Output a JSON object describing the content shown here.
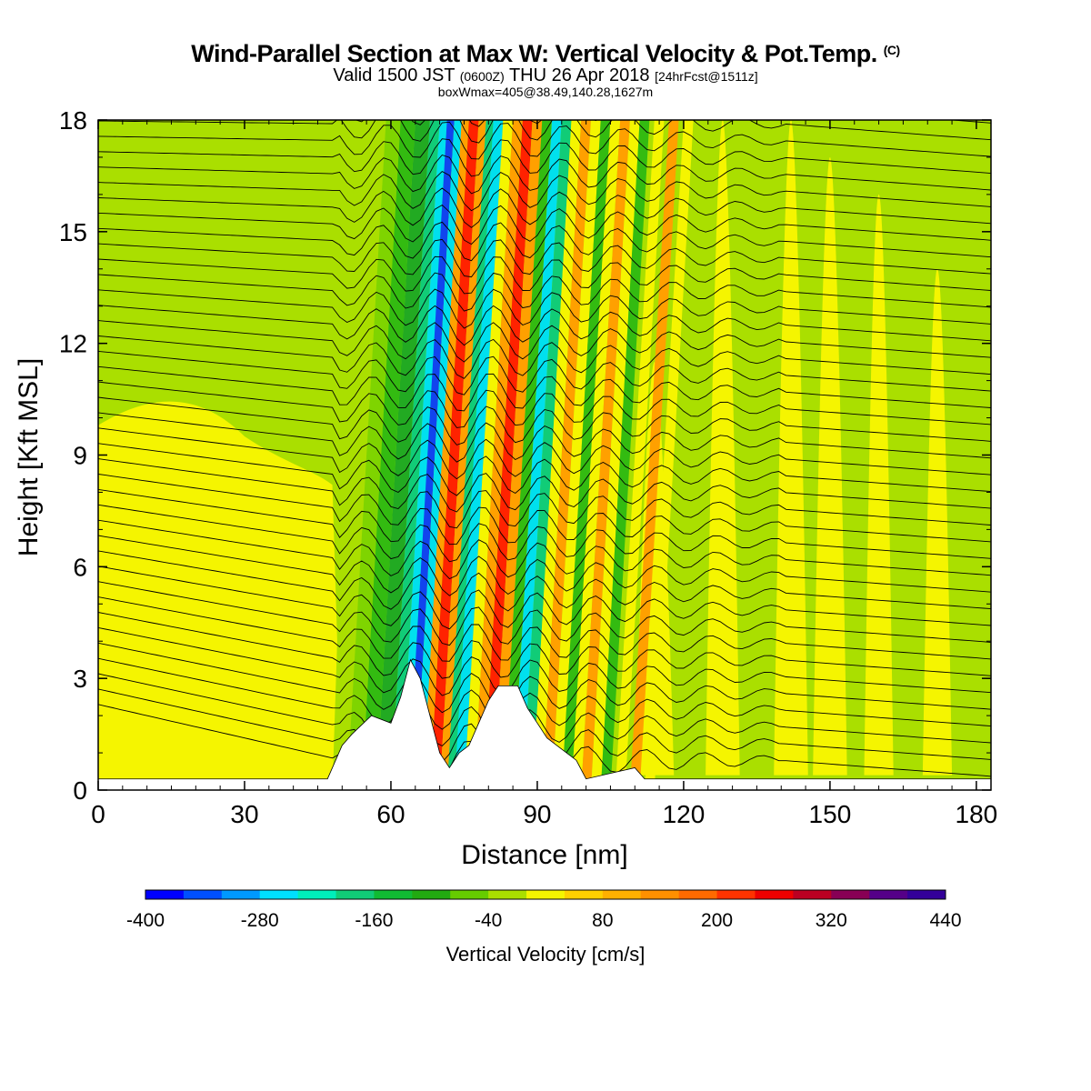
{
  "header": {
    "title_main": "Wind-Parallel Section at Max W: Vertical Velocity & Pot.Temp.",
    "title_mark": "(C)",
    "valid_part1": "Valid 1500 JST",
    "valid_utc": "(0600Z)",
    "valid_part2": "THU 26 Apr 2018",
    "valid_fcst": "[24hrFcst@1511z]",
    "box_info": "boxWmax=405@38.49,140.28,1627m"
  },
  "colors": {
    "yellow": "#f5f500",
    "yellow_green": "#aadf00",
    "light_green": "#7fd400",
    "green": "#33bb11",
    "dark_green": "#22aa22",
    "teal": "#11cc77",
    "cyan": "#00e0ee",
    "blue": "#1144ee",
    "orange": "#ffa000",
    "red": "#ff2200"
  },
  "chart_data": {
    "type": "heatmap",
    "xlabel": "Distance [nm]",
    "ylabel": "Height [Kft MSL]",
    "xlim": [
      0,
      183
    ],
    "ylim": [
      0,
      18
    ],
    "x_ticks": [
      "0",
      "30",
      "60",
      "90",
      "120",
      "150",
      "180"
    ],
    "y_ticks": [
      "0",
      "3",
      "6",
      "9",
      "12",
      "15",
      "18"
    ],
    "contours": "Potential Temperature",
    "colorbar": {
      "label": "Vertical Velocity [cm/s]",
      "min": -400,
      "max": 440,
      "step": 40,
      "tick_labels": [
        "-400",
        "-280",
        "-160",
        "-40",
        "80",
        "200",
        "320",
        "440"
      ],
      "colors": [
        "#0000ff",
        "#0050ff",
        "#0099ff",
        "#00e0ff",
        "#00eebb",
        "#11cc77",
        "#11bb33",
        "#22aa11",
        "#66cc00",
        "#aadf00",
        "#f5f500",
        "#ffd000",
        "#ffb000",
        "#ff9000",
        "#ff6a00",
        "#ff3300",
        "#ee0000",
        "#bb0022",
        "#880055",
        "#550088",
        "#330099"
      ]
    },
    "terrain_profile_kft": [
      [
        0,
        0.3
      ],
      [
        47,
        0.3
      ],
      [
        48,
        0.6
      ],
      [
        50,
        1.2
      ],
      [
        52,
        1.5
      ],
      [
        56,
        2.0
      ],
      [
        60,
        1.8
      ],
      [
        62,
        2.5
      ],
      [
        64,
        3.5
      ],
      [
        66,
        3.0
      ],
      [
        68,
        2.0
      ],
      [
        70,
        1.0
      ],
      [
        72,
        0.6
      ],
      [
        74,
        1.0
      ],
      [
        76,
        1.2
      ],
      [
        78,
        1.8
      ],
      [
        80,
        2.4
      ],
      [
        82,
        2.8
      ],
      [
        86,
        2.8
      ],
      [
        88,
        2.2
      ],
      [
        90,
        1.8
      ],
      [
        92,
        1.4
      ],
      [
        96,
        1.0
      ],
      [
        98,
        0.8
      ],
      [
        100,
        0.3
      ],
      [
        110,
        0.6
      ],
      [
        112,
        0.3
      ],
      [
        183,
        0.3
      ]
    ],
    "series": [
      {
        "name": "",
        "values": []
      }
    ]
  }
}
